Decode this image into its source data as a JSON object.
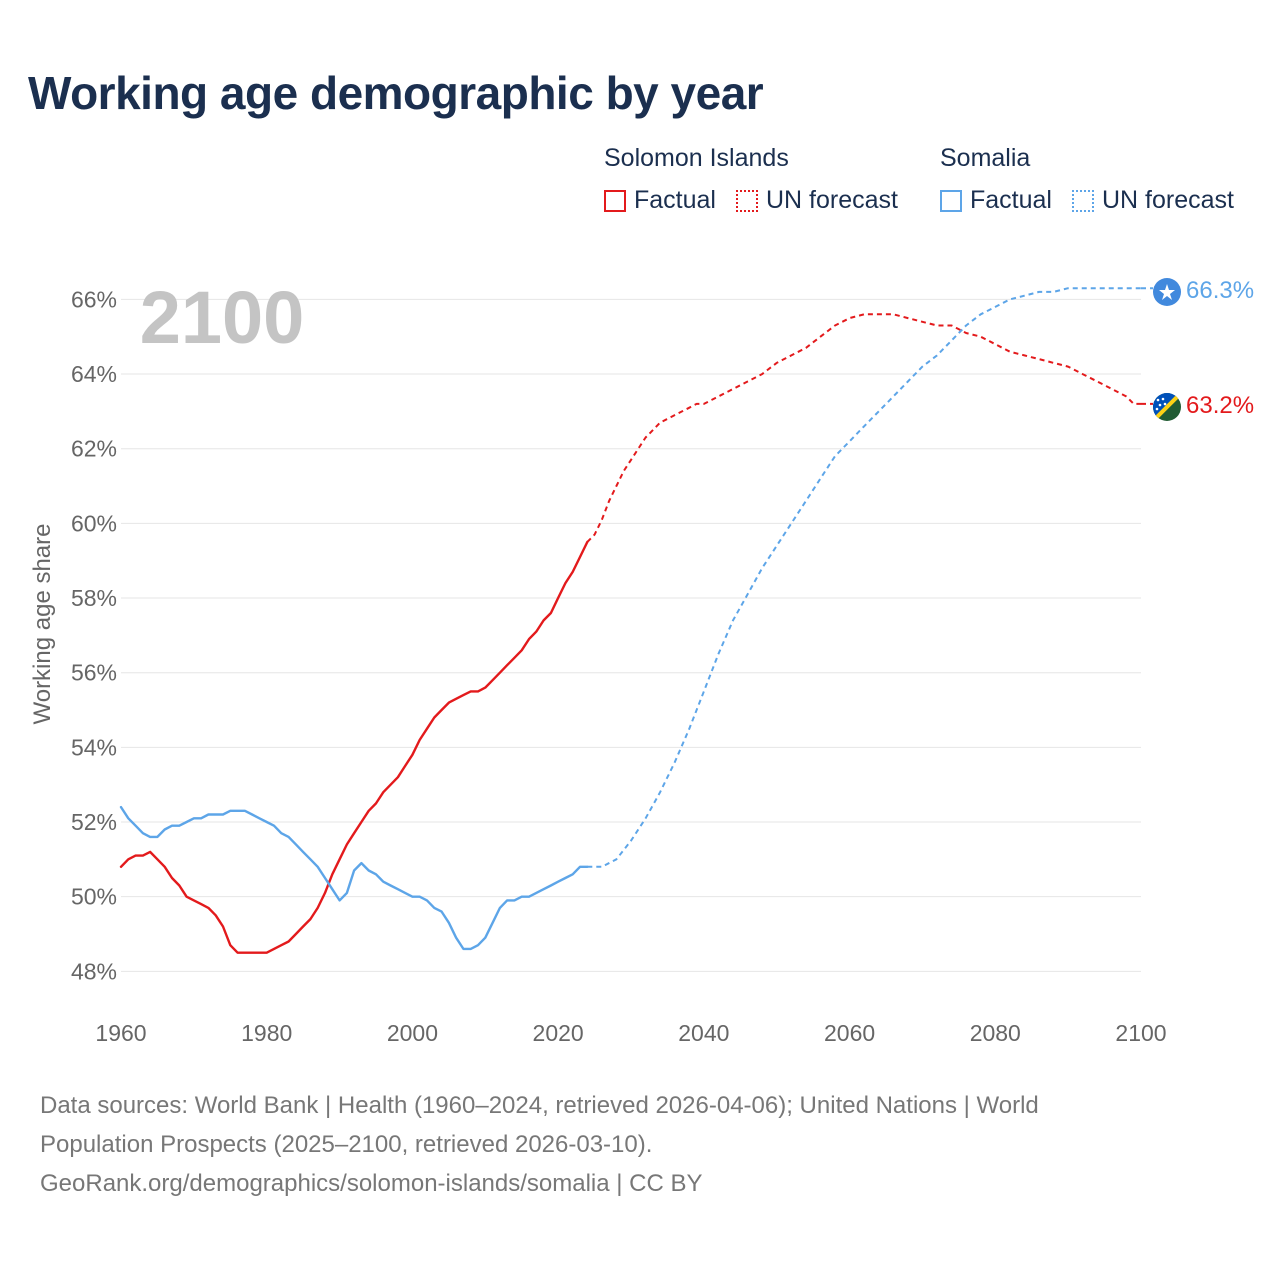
{
  "title": "Working age demographic by year",
  "legend": {
    "groups": [
      {
        "name": "Solomon Islands",
        "color": "#e31a1c",
        "items": [
          "Factual",
          "UN forecast"
        ]
      },
      {
        "name": "Somalia",
        "color": "#5da5e8",
        "items": [
          "Factual",
          "UN forecast"
        ]
      }
    ]
  },
  "year_label": "2100",
  "end_labels": {
    "somalia": "66.3%",
    "solomon": "63.2%"
  },
  "footer": {
    "line1": "Data sources: World Bank | Health (1960–2024, retrieved 2026-04-06); United Nations | World",
    "line2": "Population Prospects (2025–2100, retrieved 2026-03-10).",
    "line3": "GeoRank.org/demographics/solomon-islands/somalia | CC BY"
  },
  "chart_data": {
    "type": "line",
    "title": "Working age demographic by year",
    "ylabel": "Working age share",
    "xlabel": "",
    "xlim": [
      1960,
      2100
    ],
    "ylim": [
      47.5,
      66.6
    ],
    "xticks": [
      1960,
      1980,
      2000,
      2020,
      2040,
      2060,
      2080,
      2100
    ],
    "xtick_labels": [
      "1960",
      "1980",
      "2000",
      "2020",
      "2040",
      "2060",
      "2080",
      "2100"
    ],
    "yticks": [
      48,
      50,
      52,
      54,
      56,
      58,
      60,
      62,
      64,
      66
    ],
    "ytick_labels": [
      "48%",
      "50%",
      "52%",
      "54%",
      "56%",
      "58%",
      "60%",
      "62%",
      "64%",
      "66%"
    ],
    "series": [
      {
        "name": "Solomon Islands - Factual",
        "color": "#e31a1c",
        "dashed": false,
        "points": [
          [
            1960,
            50.8
          ],
          [
            1961,
            51.0
          ],
          [
            1962,
            51.1
          ],
          [
            1963,
            51.1
          ],
          [
            1964,
            51.2
          ],
          [
            1965,
            51.0
          ],
          [
            1966,
            50.8
          ],
          [
            1967,
            50.5
          ],
          [
            1968,
            50.3
          ],
          [
            1969,
            50.0
          ],
          [
            1970,
            49.9
          ],
          [
            1971,
            49.8
          ],
          [
            1972,
            49.7
          ],
          [
            1973,
            49.5
          ],
          [
            1974,
            49.2
          ],
          [
            1975,
            48.7
          ],
          [
            1976,
            48.5
          ],
          [
            1977,
            48.5
          ],
          [
            1978,
            48.5
          ],
          [
            1979,
            48.5
          ],
          [
            1980,
            48.5
          ],
          [
            1981,
            48.6
          ],
          [
            1982,
            48.7
          ],
          [
            1983,
            48.8
          ],
          [
            1984,
            49.0
          ],
          [
            1985,
            49.2
          ],
          [
            1986,
            49.4
          ],
          [
            1987,
            49.7
          ],
          [
            1988,
            50.1
          ],
          [
            1989,
            50.6
          ],
          [
            1990,
            51.0
          ],
          [
            1991,
            51.4
          ],
          [
            1992,
            51.7
          ],
          [
            1993,
            52.0
          ],
          [
            1994,
            52.3
          ],
          [
            1995,
            52.5
          ],
          [
            1996,
            52.8
          ],
          [
            1997,
            53.0
          ],
          [
            1998,
            53.2
          ],
          [
            1999,
            53.5
          ],
          [
            2000,
            53.8
          ],
          [
            2001,
            54.2
          ],
          [
            2002,
            54.5
          ],
          [
            2003,
            54.8
          ],
          [
            2004,
            55.0
          ],
          [
            2005,
            55.2
          ],
          [
            2006,
            55.3
          ],
          [
            2007,
            55.4
          ],
          [
            2008,
            55.5
          ],
          [
            2009,
            55.5
          ],
          [
            2010,
            55.6
          ],
          [
            2011,
            55.8
          ],
          [
            2012,
            56.0
          ],
          [
            2013,
            56.2
          ],
          [
            2014,
            56.4
          ],
          [
            2015,
            56.6
          ],
          [
            2016,
            56.9
          ],
          [
            2017,
            57.1
          ],
          [
            2018,
            57.4
          ],
          [
            2019,
            57.6
          ],
          [
            2020,
            58.0
          ],
          [
            2021,
            58.4
          ],
          [
            2022,
            58.7
          ],
          [
            2023,
            59.1
          ],
          [
            2024,
            59.5
          ]
        ]
      },
      {
        "name": "Solomon Islands - UN forecast",
        "color": "#e31a1c",
        "dashed": true,
        "points": [
          [
            2024,
            59.5
          ],
          [
            2025,
            59.7
          ],
          [
            2026,
            60.1
          ],
          [
            2027,
            60.6
          ],
          [
            2028,
            61.0
          ],
          [
            2029,
            61.4
          ],
          [
            2030,
            61.7
          ],
          [
            2031,
            62.0
          ],
          [
            2032,
            62.3
          ],
          [
            2033,
            62.5
          ],
          [
            2034,
            62.7
          ],
          [
            2035,
            62.8
          ],
          [
            2036,
            62.9
          ],
          [
            2037,
            63.0
          ],
          [
            2038,
            63.1
          ],
          [
            2039,
            63.2
          ],
          [
            2040,
            63.2
          ],
          [
            2042,
            63.4
          ],
          [
            2044,
            63.6
          ],
          [
            2046,
            63.8
          ],
          [
            2048,
            64.0
          ],
          [
            2050,
            64.3
          ],
          [
            2052,
            64.5
          ],
          [
            2054,
            64.7
          ],
          [
            2056,
            65.0
          ],
          [
            2058,
            65.3
          ],
          [
            2060,
            65.5
          ],
          [
            2062,
            65.6
          ],
          [
            2064,
            65.6
          ],
          [
            2066,
            65.6
          ],
          [
            2068,
            65.5
          ],
          [
            2070,
            65.4
          ],
          [
            2072,
            65.3
          ],
          [
            2074,
            65.3
          ],
          [
            2076,
            65.1
          ],
          [
            2078,
            65.0
          ],
          [
            2080,
            64.8
          ],
          [
            2082,
            64.6
          ],
          [
            2084,
            64.5
          ],
          [
            2086,
            64.4
          ],
          [
            2088,
            64.3
          ],
          [
            2090,
            64.2
          ],
          [
            2092,
            64.0
          ],
          [
            2094,
            63.8
          ],
          [
            2096,
            63.6
          ],
          [
            2098,
            63.4
          ],
          [
            2099,
            63.2
          ],
          [
            2100,
            63.2
          ]
        ]
      },
      {
        "name": "Somalia - Factual",
        "color": "#5da5e8",
        "dashed": false,
        "points": [
          [
            1960,
            52.4
          ],
          [
            1961,
            52.1
          ],
          [
            1962,
            51.9
          ],
          [
            1963,
            51.7
          ],
          [
            1964,
            51.6
          ],
          [
            1965,
            51.6
          ],
          [
            1966,
            51.8
          ],
          [
            1967,
            51.9
          ],
          [
            1968,
            51.9
          ],
          [
            1969,
            52.0
          ],
          [
            1970,
            52.1
          ],
          [
            1971,
            52.1
          ],
          [
            1972,
            52.2
          ],
          [
            1973,
            52.2
          ],
          [
            1974,
            52.2
          ],
          [
            1975,
            52.3
          ],
          [
            1976,
            52.3
          ],
          [
            1977,
            52.3
          ],
          [
            1978,
            52.2
          ],
          [
            1979,
            52.1
          ],
          [
            1980,
            52.0
          ],
          [
            1981,
            51.9
          ],
          [
            1982,
            51.7
          ],
          [
            1983,
            51.6
          ],
          [
            1984,
            51.4
          ],
          [
            1985,
            51.2
          ],
          [
            1986,
            51.0
          ],
          [
            1987,
            50.8
          ],
          [
            1988,
            50.5
          ],
          [
            1989,
            50.2
          ],
          [
            1990,
            49.9
          ],
          [
            1991,
            50.1
          ],
          [
            1992,
            50.7
          ],
          [
            1993,
            50.9
          ],
          [
            1994,
            50.7
          ],
          [
            1995,
            50.6
          ],
          [
            1996,
            50.4
          ],
          [
            1997,
            50.3
          ],
          [
            1998,
            50.2
          ],
          [
            1999,
            50.1
          ],
          [
            2000,
            50.0
          ],
          [
            2001,
            50.0
          ],
          [
            2002,
            49.9
          ],
          [
            2003,
            49.7
          ],
          [
            2004,
            49.6
          ],
          [
            2005,
            49.3
          ],
          [
            2006,
            48.9
          ],
          [
            2007,
            48.6
          ],
          [
            2008,
            48.6
          ],
          [
            2009,
            48.7
          ],
          [
            2010,
            48.9
          ],
          [
            2011,
            49.3
          ],
          [
            2012,
            49.7
          ],
          [
            2013,
            49.9
          ],
          [
            2014,
            49.9
          ],
          [
            2015,
            50.0
          ],
          [
            2016,
            50.0
          ],
          [
            2017,
            50.1
          ],
          [
            2018,
            50.2
          ],
          [
            2019,
            50.3
          ],
          [
            2020,
            50.4
          ],
          [
            2021,
            50.5
          ],
          [
            2022,
            50.6
          ],
          [
            2023,
            50.8
          ],
          [
            2024,
            50.8
          ]
        ]
      },
      {
        "name": "Somalia - UN forecast",
        "color": "#5da5e8",
        "dashed": true,
        "points": [
          [
            2024,
            50.8
          ],
          [
            2026,
            50.8
          ],
          [
            2028,
            51.0
          ],
          [
            2030,
            51.5
          ],
          [
            2032,
            52.1
          ],
          [
            2034,
            52.8
          ],
          [
            2036,
            53.6
          ],
          [
            2038,
            54.5
          ],
          [
            2040,
            55.5
          ],
          [
            2042,
            56.5
          ],
          [
            2044,
            57.4
          ],
          [
            2046,
            58.1
          ],
          [
            2048,
            58.8
          ],
          [
            2050,
            59.4
          ],
          [
            2052,
            60.0
          ],
          [
            2054,
            60.6
          ],
          [
            2056,
            61.2
          ],
          [
            2058,
            61.8
          ],
          [
            2060,
            62.2
          ],
          [
            2062,
            62.6
          ],
          [
            2064,
            63.0
          ],
          [
            2066,
            63.4
          ],
          [
            2068,
            63.8
          ],
          [
            2070,
            64.2
          ],
          [
            2072,
            64.5
          ],
          [
            2074,
            64.9
          ],
          [
            2076,
            65.3
          ],
          [
            2078,
            65.6
          ],
          [
            2080,
            65.8
          ],
          [
            2082,
            66.0
          ],
          [
            2084,
            66.1
          ],
          [
            2086,
            66.2
          ],
          [
            2088,
            66.2
          ],
          [
            2090,
            66.3
          ],
          [
            2095,
            66.3
          ],
          [
            2100,
            66.3
          ]
        ]
      }
    ]
  }
}
